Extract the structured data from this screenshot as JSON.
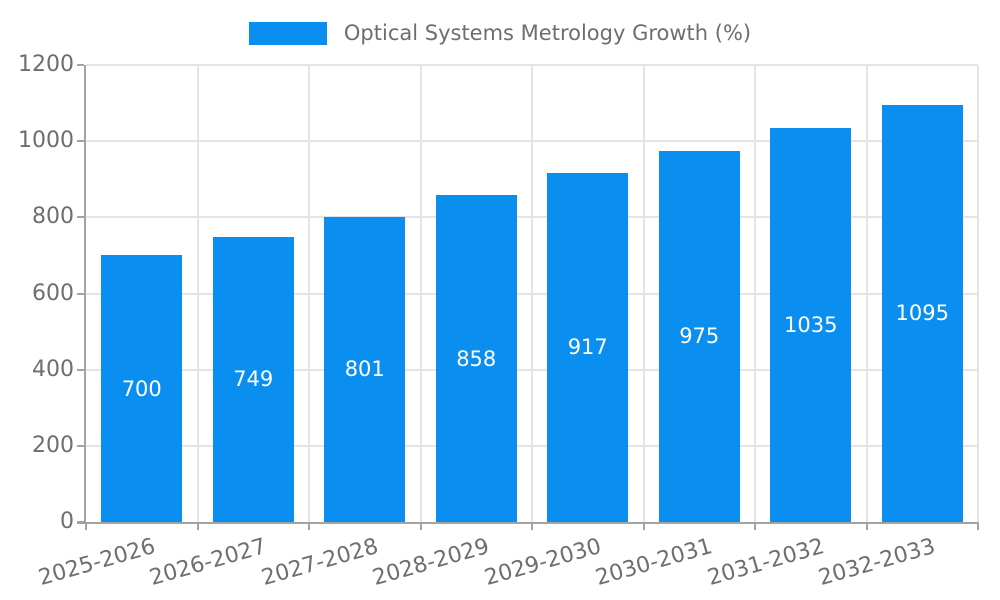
{
  "chart_data": {
    "type": "bar",
    "title": "Optical Systems Metrology Growth (%)",
    "legend": {
      "label": "Optical Systems Metrology Growth (%)",
      "position": "top-center"
    },
    "categories": [
      "2025-2026",
      "2026-2027",
      "2027-2028",
      "2028-2029",
      "2029-2030",
      "2030-2031",
      "2031-2032",
      "2032-2033"
    ],
    "values": [
      700,
      749,
      801,
      858,
      917,
      975,
      1035,
      1095
    ],
    "bar_labels": [
      "700",
      "749",
      "801",
      "858",
      "917",
      "975",
      "1035",
      "1095"
    ],
    "xlabel": "",
    "ylabel": "",
    "ylim": [
      0,
      1200
    ],
    "yticks": [
      0,
      200,
      400,
      600,
      800,
      1000,
      1200
    ],
    "grid": true,
    "x_tick_rotation_deg": -16,
    "colors": {
      "bar": "#0a8ff0",
      "bar_label": "#ffffff",
      "grid": "#e4e4e4",
      "axis": "#a3a3a3",
      "tick_label": "#6e6e6e",
      "legend_text": "#6e6e6e",
      "background": "#ffffff"
    }
  }
}
